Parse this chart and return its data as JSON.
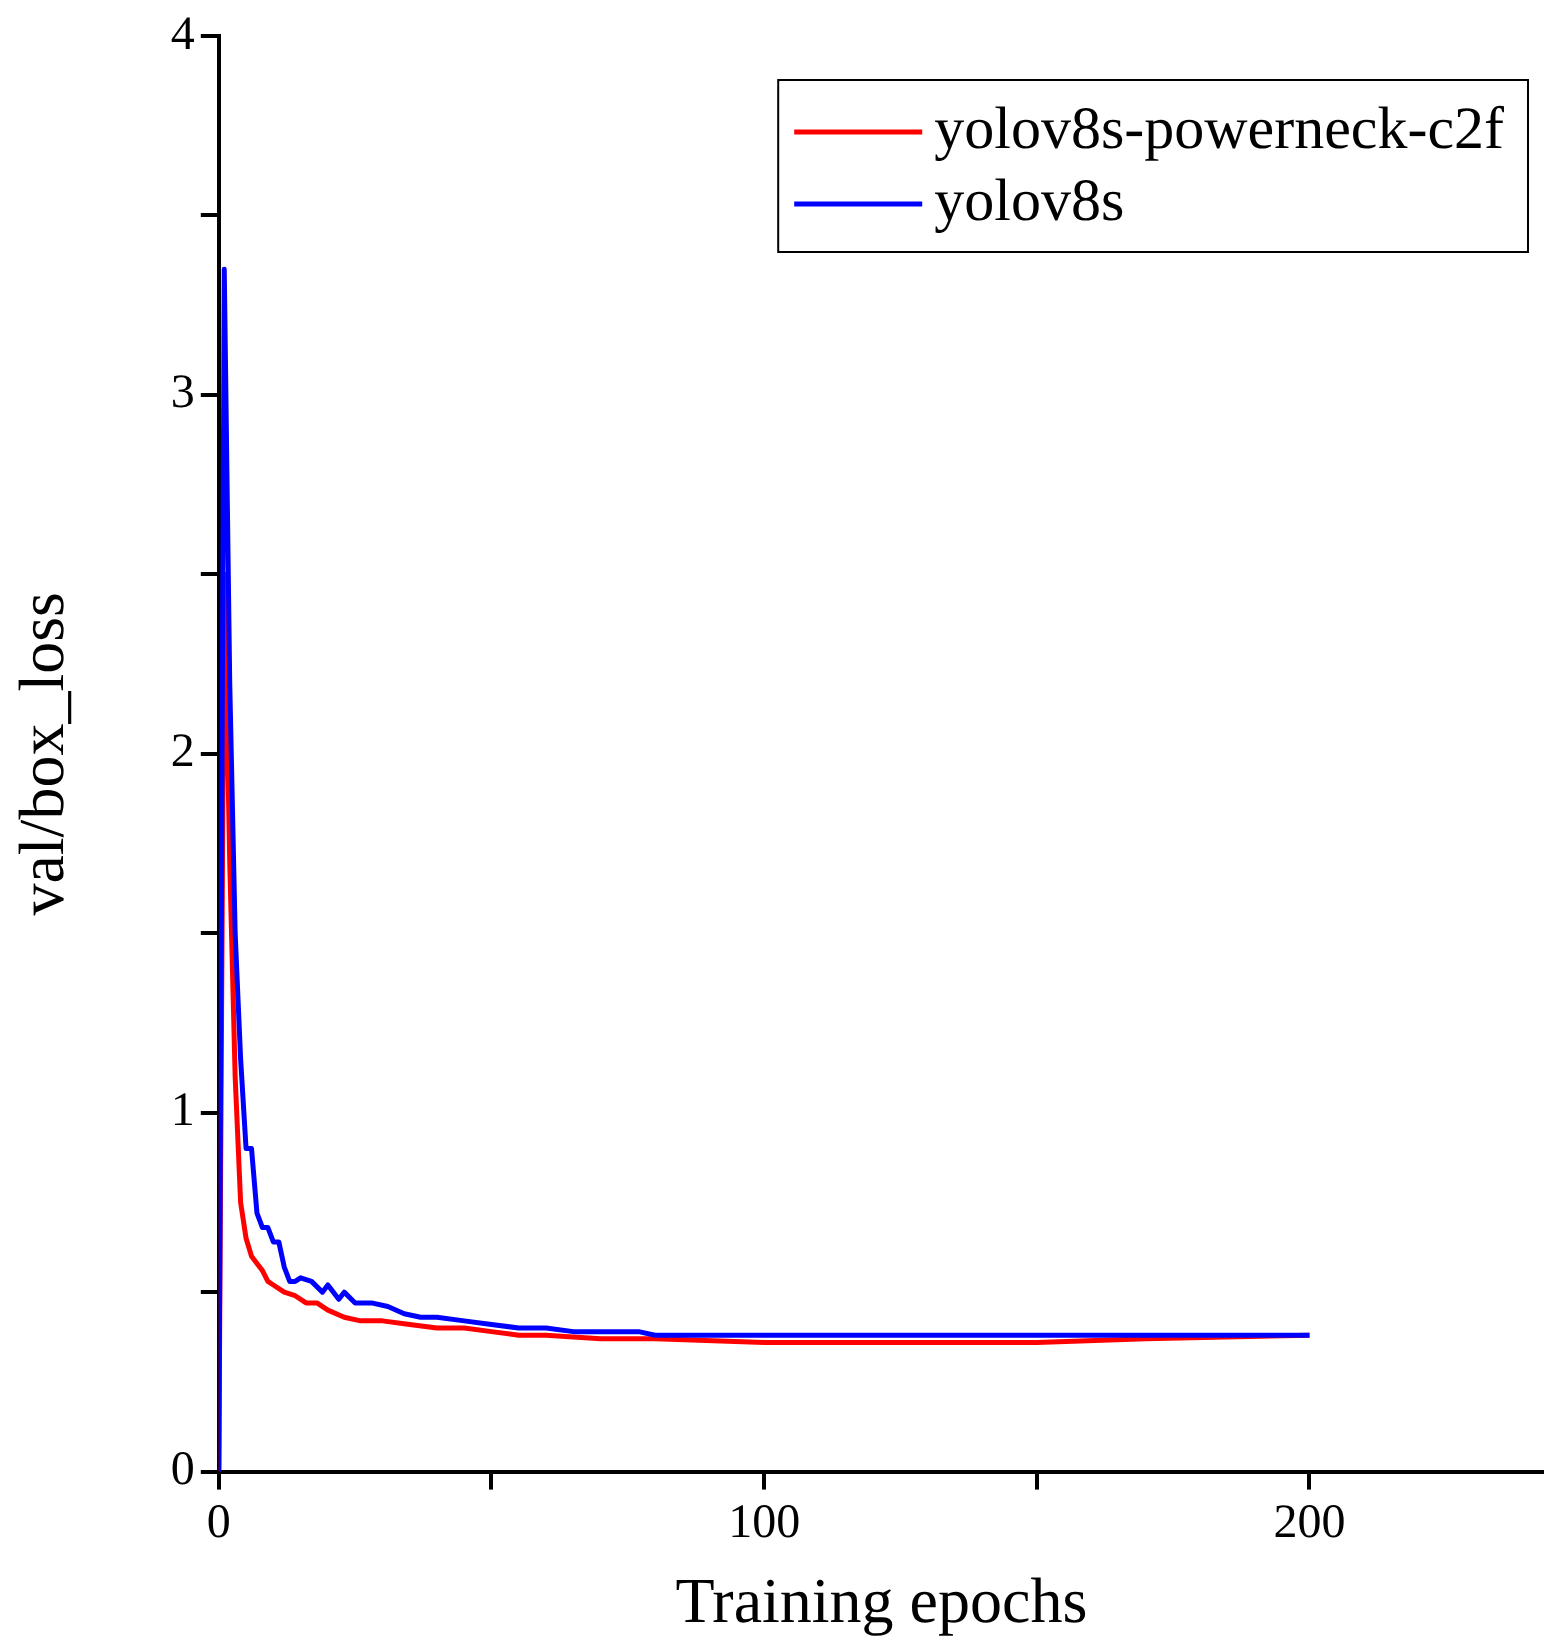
{
  "chart_data": {
    "type": "line",
    "xlabel": "Training epochs",
    "ylabel": "val/box_loss",
    "xlim": [
      0,
      243
    ],
    "xticks": [
      0,
      {
        "value": 50,
        "label": null
      },
      100,
      {
        "value": 150,
        "label": null
      },
      200
    ],
    "ylim": [
      0,
      4
    ],
    "yticks": [
      0,
      {
        "value": 0.5,
        "label": null
      },
      1,
      {
        "value": 1.5,
        "label": null
      },
      2,
      {
        "value": 2.5,
        "label": null
      },
      3,
      {
        "value": 3.5,
        "label": null
      },
      4
    ],
    "legend": "top right",
    "grid": false,
    "marker": "none",
    "line_style": "solid",
    "series": [
      {
        "name": "yolov8s-powerneck-c2f",
        "color": "#ff0000",
        "x": [
          0,
          1,
          2,
          3,
          4,
          5,
          6,
          7,
          8,
          9,
          10,
          12,
          14,
          16,
          18,
          20,
          23,
          26,
          30,
          35,
          40,
          45,
          50,
          55,
          60,
          70,
          80,
          100,
          120,
          150,
          170,
          200
        ],
        "values": [
          0,
          2.5,
          1.7,
          1.1,
          0.75,
          0.65,
          0.6,
          0.58,
          0.56,
          0.53,
          0.52,
          0.5,
          0.49,
          0.47,
          0.47,
          0.45,
          0.43,
          0.42,
          0.42,
          0.41,
          0.4,
          0.4,
          0.39,
          0.38,
          0.38,
          0.37,
          0.37,
          0.36,
          0.36,
          0.36,
          0.37,
          0.38
        ]
      },
      {
        "name": "yolov8s",
        "color": "#0000ff",
        "x": [
          0,
          1,
          2,
          3,
          4,
          5,
          6,
          7,
          8,
          9,
          10,
          11,
          12,
          13,
          14,
          15,
          17,
          19,
          20,
          22,
          23,
          25,
          28,
          31,
          34,
          37,
          40,
          45,
          50,
          55,
          60,
          65,
          70,
          77,
          80,
          90,
          100,
          120,
          150,
          175,
          200
        ],
        "values": [
          0,
          3.35,
          2.2,
          1.5,
          1.15,
          0.9,
          0.9,
          0.72,
          0.68,
          0.68,
          0.64,
          0.64,
          0.57,
          0.53,
          0.53,
          0.54,
          0.53,
          0.5,
          0.52,
          0.48,
          0.5,
          0.47,
          0.47,
          0.46,
          0.44,
          0.43,
          0.43,
          0.42,
          0.41,
          0.4,
          0.4,
          0.39,
          0.39,
          0.39,
          0.38,
          0.38,
          0.38,
          0.38,
          0.38,
          0.38,
          0.38
        ]
      }
    ]
  }
}
